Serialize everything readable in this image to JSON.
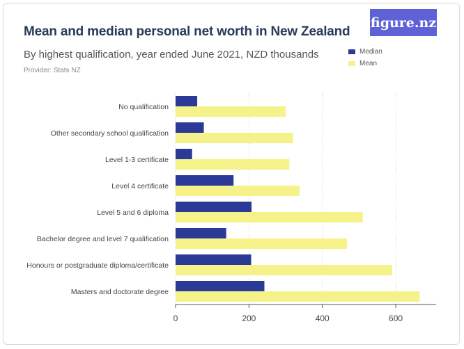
{
  "brand": {
    "logo_text": "figure.nz"
  },
  "header": {
    "title": "Mean and median personal net worth in New Zealand",
    "subtitle": "By highest qualification, year ended June 2021, NZD thousands",
    "provider": "Provider: Stats NZ"
  },
  "colors": {
    "median": "#2b3a96",
    "mean": "#f6f28a",
    "axis": "#555555"
  },
  "chart_data": {
    "type": "bar",
    "orientation": "horizontal",
    "categories": [
      "No qualification",
      "Other secondary school qualification",
      "Level 1-3 certificate",
      "Level 4 certificate",
      "Level 5 and 6 diploma",
      "Bachelor degree and level 7 qualification",
      "Honours or postgraduate diploma/certificate",
      "Masters and doctorate degree"
    ],
    "series": [
      {
        "name": "Median",
        "values": [
          59,
          77,
          45,
          158,
          207,
          138,
          206,
          242
        ]
      },
      {
        "name": "Mean",
        "values": [
          300,
          320,
          310,
          338,
          510,
          467,
          590,
          665
        ]
      }
    ],
    "xlim": [
      0,
      710
    ],
    "xticks": [
      0,
      200,
      400,
      600
    ],
    "grid": true,
    "legend_position": "top-right"
  }
}
